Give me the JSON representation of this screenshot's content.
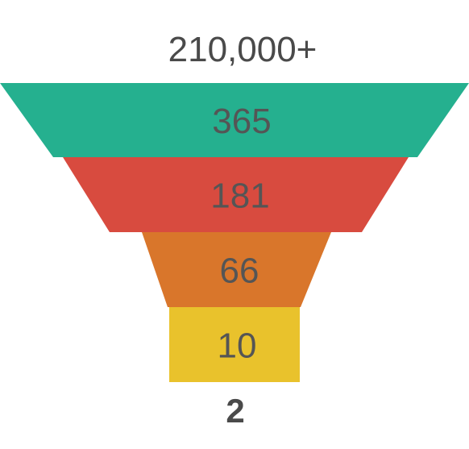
{
  "chart_data": {
    "type": "funnel",
    "top_label": "210,000+",
    "bottom_label": "2",
    "stages": [
      {
        "value": 365,
        "label": "365",
        "color": "#25b08f"
      },
      {
        "value": 181,
        "label": "181",
        "color": "#d84b3f"
      },
      {
        "value": 66,
        "label": "66",
        "color": "#d9762b"
      },
      {
        "value": 10,
        "label": "10",
        "color": "#e9c22c"
      }
    ]
  }
}
